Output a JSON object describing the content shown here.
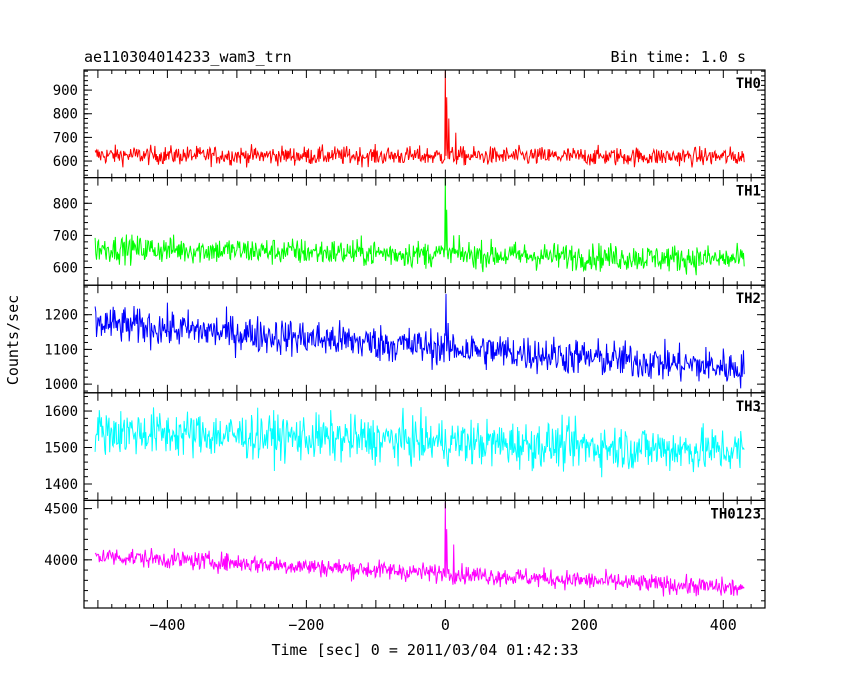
{
  "chart_data": {
    "type": "line",
    "title": "ae110304014233_wam3_trn",
    "subtitle": "Bin time: 1.0 s",
    "xlabel": "Time [sec] 0 = 2011/03/04 01:42:33",
    "ylabel": "Counts/sec",
    "xlim": [
      -520,
      460
    ],
    "x_ticks": [
      -400,
      -200,
      0,
      200,
      400
    ],
    "x_tick_labels": [
      "−400",
      "−200",
      "0",
      "200",
      "400"
    ],
    "x_range": [
      -504,
      430
    ],
    "grid": false,
    "panels": [
      {
        "name": "TH0",
        "color": "#ff0000",
        "ylim": [
          530,
          985
        ],
        "y_ticks": [
          600,
          700,
          800,
          900
        ],
        "y_tick_labels": [
          "600",
          "700",
          "800",
          "900"
        ],
        "baseline": 625,
        "trend_end": 618,
        "noise": 28,
        "peaks": [
          {
            "x": 0,
            "value": 980
          },
          {
            "x": 2,
            "value": 870
          },
          {
            "x": 5,
            "value": 780
          },
          {
            "x": 15,
            "value": 720
          }
        ]
      },
      {
        "name": "TH1",
        "color": "#00ff00",
        "ylim": [
          545,
          880
        ],
        "y_ticks": [
          600,
          700,
          800
        ],
        "y_tick_labels": [
          "600",
          "700",
          "800"
        ],
        "baseline": 660,
        "trend_end": 625,
        "noise": 30,
        "peaks": [
          {
            "x": 0,
            "value": 880
          },
          {
            "x": 2,
            "value": 780
          },
          {
            "x": 12,
            "value": 700
          }
        ]
      },
      {
        "name": "TH2",
        "color": "#0000ff",
        "ylim": [
          975,
          1285
        ],
        "y_ticks": [
          1000,
          1100,
          1200
        ],
        "y_tick_labels": [
          "1000",
          "1100",
          "1200"
        ],
        "baseline": 1175,
        "trend_end": 1045,
        "noise": 38,
        "peaks": [
          {
            "x": 1,
            "value": 1260
          }
        ]
      },
      {
        "name": "TH3",
        "color": "#00ffff",
        "ylim": [
          1355,
          1650
        ],
        "y_ticks": [
          1400,
          1500,
          1600
        ],
        "y_tick_labels": [
          "1400",
          "1500",
          "1600"
        ],
        "baseline": 1545,
        "trend_end": 1490,
        "noise": 45,
        "peaks": []
      },
      {
        "name": "TH0123",
        "color": "#ff00ff",
        "ylim": [
          3530,
          4580
        ],
        "y_ticks": [
          4000,
          4500
        ],
        "y_tick_labels": [
          "4000",
          "4500"
        ],
        "baseline": 4040,
        "trend_end": 3720,
        "noise": 65,
        "peaks": [
          {
            "x": 0,
            "value": 4560
          },
          {
            "x": 2,
            "value": 4300
          },
          {
            "x": 12,
            "value": 4150
          }
        ]
      }
    ]
  }
}
